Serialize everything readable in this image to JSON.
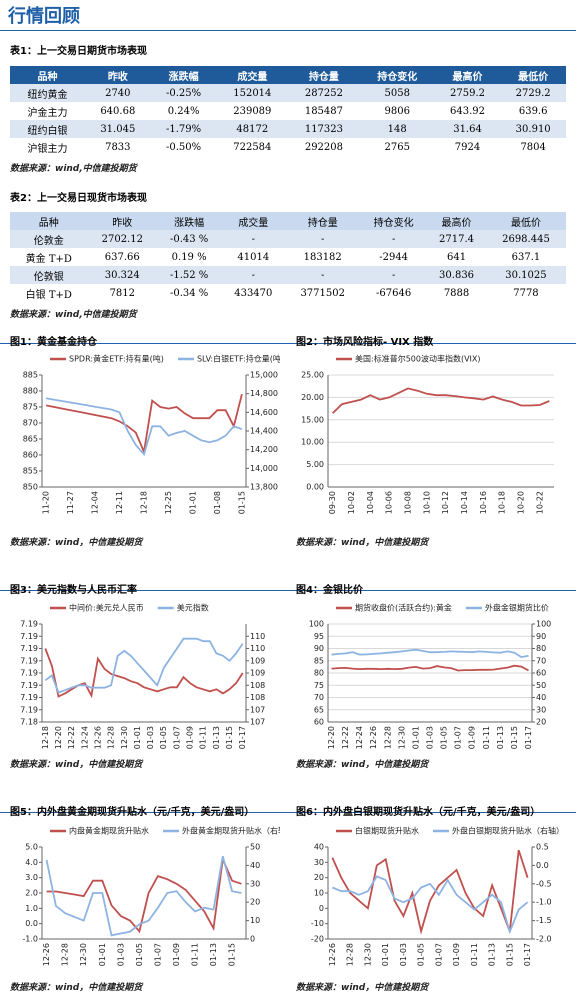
{
  "header": {
    "title": "行情回顾"
  },
  "table1": {
    "caption": "表1：上一交易日期货市场表现",
    "columns": [
      "品种",
      "昨收",
      "涨跌幅",
      "成交量",
      "持仓量",
      "持仓变化",
      "最高价",
      "最低价"
    ],
    "rows": [
      [
        "纽约黄金",
        "2740",
        "-0.25%",
        "152014",
        "287252",
        "5058",
        "2759.2",
        "2729.2"
      ],
      [
        "沪金主力",
        "640.68",
        "0.24%",
        "239089",
        "185487",
        "9806",
        "643.92",
        "639.6"
      ],
      [
        "纽约白银",
        "31.045",
        "-1.79%",
        "48172",
        "117323",
        "148",
        "31.64",
        "30.910"
      ],
      [
        "沪银主力",
        "7833",
        "-0.50%",
        "722584",
        "292208",
        "2765",
        "7924",
        "7804"
      ]
    ],
    "source": "数据来源：wind,中信建投期货"
  },
  "table2": {
    "caption": "表2：上一交易日现货市场表现",
    "columns": [
      "品种",
      "昨收",
      "涨跌幅",
      "成交量",
      "持仓量",
      "持仓变化",
      "最高价",
      "最低价"
    ],
    "rows": [
      [
        "伦敦金",
        "2702.12",
        "-0.43 %",
        "-",
        "-",
        "-",
        "2717.4",
        "2698.445"
      ],
      [
        "黄金 T+D",
        "637.66",
        "0.19 %",
        "41014",
        "183182",
        "-2944",
        "641",
        "637.1"
      ],
      [
        "伦敦银",
        "30.324",
        "-1.52 %",
        "-",
        "-",
        "-",
        "30.836",
        "30.1025"
      ],
      [
        "白银 T+D",
        "7812",
        "-0.34 %",
        "433470",
        "3771502",
        "-67646",
        "7888",
        "7778"
      ]
    ],
    "source": "数据来源：wind,中信建投期货"
  },
  "charts": [
    {
      "type": "line",
      "caption": "图1：黄金基金持仓",
      "source": "数据来源：wind，中信建投期货",
      "grid": false,
      "categories": [
        "11-20",
        null,
        null,
        "11-27",
        null,
        null,
        "12-04",
        null,
        null,
        "12-11",
        null,
        null,
        "12-18",
        null,
        null,
        "12-25",
        null,
        null,
        "01-01",
        null,
        null,
        "01-08",
        null,
        null,
        "01-15"
      ],
      "ylim": [
        850,
        885
      ],
      "yticks": [
        850,
        855,
        860,
        865,
        870,
        875,
        880,
        885
      ],
      "y2lim": [
        13800,
        15000
      ],
      "y2ticks": [
        {
          "value": 13800,
          "label": "13,800"
        },
        {
          "value": 14000,
          "label": "14,000"
        },
        {
          "value": 14200,
          "label": "14,200"
        },
        {
          "value": 14400,
          "label": "14,400"
        },
        {
          "value": 14600,
          "label": "14,600"
        },
        {
          "value": 14800,
          "label": "14,800"
        },
        {
          "value": 15000,
          "label": "15,000"
        }
      ],
      "series": [
        {
          "name": "SPDR:黄金ETF:持有量(吨)",
          "color": "#c0504d",
          "values": [
            875.5,
            875,
            874.5,
            874,
            873.5,
            873,
            872.5,
            872,
            871.5,
            870.5,
            869,
            867,
            861,
            877,
            875,
            874.5,
            875,
            873,
            871.5,
            871.5,
            871.5,
            874,
            874,
            869,
            879
          ]
        },
        {
          "name": "SLV:白银ETF:持仓量(吨)",
          "color": "#8db3e2",
          "axis": "y2",
          "values": [
            14750,
            14735,
            14720,
            14705,
            14690,
            14675,
            14660,
            14645,
            14630,
            14600,
            14400,
            14250,
            14150,
            14450,
            14450,
            14350,
            14380,
            14400,
            14350,
            14300,
            14280,
            14300,
            14350,
            14450,
            14420
          ]
        }
      ]
    },
    {
      "type": "line",
      "caption": "图2：市场风险指标- VIX 指数",
      "source": "数据来源：wind，中信建投期货",
      "grid": true,
      "categories": [
        "09-30",
        null,
        "10-02",
        null,
        "10-04",
        null,
        "10-06",
        null,
        "10-08",
        null,
        "10-10",
        null,
        "10-12",
        null,
        "10-14",
        null,
        "10-16",
        null,
        "10-18",
        null,
        "10-20",
        null,
        "10-22",
        null
      ],
      "ylim": [
        0,
        25
      ],
      "yticks": [
        {
          "value": 0,
          "label": "0.00"
        },
        {
          "value": 5,
          "label": "5.00"
        },
        {
          "value": 10,
          "label": "10.00"
        },
        {
          "value": 15,
          "label": "15.00"
        },
        {
          "value": 20,
          "label": "20.00"
        },
        {
          "value": 25,
          "label": "25.00"
        }
      ],
      "series": [
        {
          "name": "美国:标准普尔500波动率指数(VIX)",
          "color": "#c0504d",
          "values": [
            16.5,
            18.5,
            19,
            19.5,
            20.5,
            19.5,
            20,
            21,
            22,
            21.5,
            20.8,
            20.5,
            20.5,
            20.3,
            20,
            19.8,
            19.5,
            20.2,
            19.5,
            19,
            18.2,
            18.2,
            18.3,
            19.2
          ]
        }
      ]
    },
    {
      "type": "line",
      "caption": "图3：美元指数与人民币汇率",
      "source": "数据来源：wind，中信建投期货",
      "grid": false,
      "categories": [
        "12-18",
        null,
        "12-20",
        null,
        "12-22",
        null,
        "12-24",
        null,
        "12-26",
        null,
        "12-28",
        null,
        "12-30",
        null,
        "01-01",
        null,
        "01-03",
        null,
        "01-05",
        null,
        "01-07",
        null,
        "01-09",
        null,
        "01-11",
        null,
        "01-13",
        null,
        "01-15",
        null,
        "01-17"
      ],
      "ylim": [
        7.184,
        7.1936
      ],
      "yticks": [
        {
          "value": 7.184,
          "label": "7.18"
        },
        {
          "value": 7.1852,
          "label": "7.19"
        },
        {
          "value": 7.1864,
          "label": "7.19"
        },
        {
          "value": 7.1876,
          "label": "7.19"
        },
        {
          "value": 7.1888,
          "label": "7.19"
        },
        {
          "value": 7.19,
          "label": "7.19"
        },
        {
          "value": 7.1912,
          "label": "7.19"
        },
        {
          "value": 7.1924,
          "label": "7.19"
        },
        {
          "value": 7.1936,
          "label": "7.19"
        }
      ],
      "y2lim": [
        106.8,
        110.8
      ],
      "y2ticks": [
        {
          "value": 106.8,
          "label": "107"
        },
        {
          "value": 107.3,
          "label": "107"
        },
        {
          "value": 107.8,
          "label": "108"
        },
        {
          "value": 108.3,
          "label": "108"
        },
        {
          "value": 108.8,
          "label": "109"
        },
        {
          "value": 109.3,
          "label": "109"
        },
        {
          "value": 109.8,
          "label": "110"
        },
        {
          "value": 110.3,
          "label": "110"
        }
      ],
      "series": [
        {
          "name": "中间价:美元兑人民币",
          "color": "#c0504d",
          "values": [
            7.1912,
            7.1895,
            7.1865,
            7.1868,
            7.1872,
            7.1876,
            7.1878,
            7.1866,
            7.1902,
            7.1892,
            7.1887,
            7.1885,
            7.1883,
            7.188,
            7.1878,
            7.1874,
            7.1872,
            7.187,
            7.1872,
            7.1874,
            7.1874,
            7.1884,
            7.1878,
            7.1874,
            7.1872,
            7.187,
            7.1872,
            7.1868,
            7.1872,
            7.1878,
            7.1888
          ]
        },
        {
          "name": "美元指数",
          "color": "#8db3e2",
          "axis": "y2",
          "values": [
            108.5,
            108.7,
            108,
            108.1,
            108.2,
            108.3,
            108.3,
            108.2,
            108.2,
            108.2,
            108.3,
            109.5,
            109.7,
            109.5,
            109.2,
            108.9,
            108.6,
            108.3,
            109,
            109.4,
            109.8,
            110.2,
            110.2,
            110.2,
            110.1,
            110.1,
            109.6,
            109.5,
            109.3,
            109.6,
            110
          ]
        }
      ]
    },
    {
      "type": "line",
      "caption": "图4：金银比价",
      "source": "数据来源：wind，中信建投期货",
      "grid": true,
      "categories": [
        "12-20",
        null,
        "12-22",
        null,
        "12-24",
        null,
        "12-26",
        null,
        "12-28",
        null,
        "12-30",
        null,
        "01-01",
        null,
        "01-03",
        null,
        "01-05",
        null,
        "01-07",
        null,
        "01-09",
        null,
        "01-11",
        null,
        "01-13",
        null,
        "01-15",
        null,
        "01-17"
      ],
      "ylim": [
        60,
        100
      ],
      "yticks": [
        60,
        65,
        70,
        75,
        80,
        85,
        90,
        95,
        100
      ],
      "y2lim": [
        20,
        100
      ],
      "y2ticks": [
        20,
        30,
        40,
        50,
        60,
        70,
        80,
        90,
        100
      ],
      "series": [
        {
          "name": "期货收盘价(活跃合约):黄金",
          "color": "#c0504d",
          "values": [
            81.8,
            82,
            82.1,
            81.8,
            81.6,
            81.7,
            81.7,
            81.6,
            81.7,
            81.6,
            81.7,
            82.2,
            82.5,
            81.8,
            82,
            82.8,
            82.3,
            82,
            81,
            81.2,
            81.2,
            81.3,
            81.3,
            81.4,
            81.8,
            82.2,
            83,
            82.6,
            81
          ]
        },
        {
          "name": "外盘金银期货比价",
          "color": "#8db3e2",
          "values": [
            87.5,
            87.8,
            88,
            88.5,
            87.5,
            87.6,
            87.8,
            88,
            88.3,
            88.5,
            88.8,
            89.2,
            89.5,
            89,
            88.5,
            88.5,
            88.6,
            88.8,
            88.7,
            88.6,
            88.5,
            88.8,
            88.6,
            88.4,
            88.3,
            88.8,
            88.3,
            86.5,
            87
          ]
        }
      ]
    },
    {
      "type": "line",
      "caption": "图5：内外盘黄金期现货升贴水（元/千克，美元/盎司）",
      "source": "数据来源：wind，中信建投期货",
      "grid": false,
      "categories": [
        "12-26",
        null,
        "12-28",
        null,
        "12-30",
        null,
        "01-01",
        null,
        "01-03",
        null,
        "01-05",
        null,
        "01-07",
        null,
        "01-09",
        null,
        "01-11",
        null,
        "01-13",
        null,
        "01-15",
        null
      ],
      "ylim": [
        -1,
        5
      ],
      "yticks": [
        {
          "value": -1,
          "label": "-1.0"
        },
        {
          "value": 0,
          "label": "0.0"
        },
        {
          "value": 1,
          "label": "1.0"
        },
        {
          "value": 2,
          "label": "2.0"
        },
        {
          "value": 3,
          "label": "3.0"
        },
        {
          "value": 4,
          "label": "4.0"
        },
        {
          "value": 5,
          "label": "5.0"
        }
      ],
      "y2lim": [
        0,
        50
      ],
      "y2ticks": [
        0,
        10,
        20,
        30,
        40,
        50
      ],
      "series": [
        {
          "name": "内盘黄金期现货升贴水",
          "color": "#c0504d",
          "values": [
            2.1,
            2.1,
            2,
            1.9,
            1.8,
            2.8,
            2.8,
            1.2,
            0.5,
            0.2,
            -0.5,
            2,
            3.1,
            2.9,
            2.6,
            2.2,
            1.5,
            0.8,
            -0.3,
            4.2,
            2.8,
            2.6
          ]
        },
        {
          "name": "外盘黄金期现货升贴水（右轴）",
          "color": "#8db3e2",
          "axis": "y2",
          "values": [
            43,
            18,
            14,
            12,
            10,
            25,
            25,
            2,
            3,
            4,
            8,
            10,
            17,
            25,
            26,
            20,
            15,
            17,
            16,
            45,
            26,
            25
          ]
        }
      ]
    },
    {
      "type": "line",
      "caption": "图6：内外盘白银期现货升贴水（元/千克，美元/盎司）",
      "source": "数据来源：wind，中信建投期货",
      "grid": false,
      "categories": [
        "12-26",
        null,
        "12-28",
        null,
        "12-30",
        null,
        "01-01",
        null,
        "01-03",
        null,
        "01-05",
        null,
        "01-07",
        null,
        "01-09",
        null,
        "01-11",
        null,
        "01-13",
        null,
        "01-15",
        null,
        "01-17"
      ],
      "ylim": [
        -20,
        40
      ],
      "yticks": [
        -20,
        -10,
        0,
        10,
        20,
        30,
        40
      ],
      "y2lim": [
        -2,
        0.5
      ],
      "y2ticks": [
        {
          "value": -2,
          "label": "-2.0"
        },
        -1.5,
        {
          "value": -1,
          "label": "-1.0"
        },
        -0.5,
        {
          "value": 0,
          "label": "0.0"
        },
        0.5
      ],
      "series": [
        {
          "name": "白银期现货升贴水",
          "color": "#c0504d",
          "values": [
            33,
            20,
            10,
            5,
            0,
            28,
            32,
            5,
            -5,
            10,
            -15,
            5,
            15,
            20,
            25,
            10,
            0,
            -5,
            15,
            0,
            -15,
            38,
            20
          ]
        },
        {
          "name": "外盘白银期现货升贴水（右轴）",
          "color": "#8db3e2",
          "axis": "y2",
          "values": [
            -0.6,
            -0.7,
            -0.7,
            -0.8,
            -0.7,
            -0.3,
            -0.4,
            -0.9,
            -1,
            -0.9,
            -0.6,
            -0.5,
            -0.8,
            -0.4,
            -0.8,
            -1,
            -1.2,
            -1,
            -0.8,
            -1,
            -1.8,
            -1.2,
            -1
          ]
        }
      ]
    }
  ]
}
